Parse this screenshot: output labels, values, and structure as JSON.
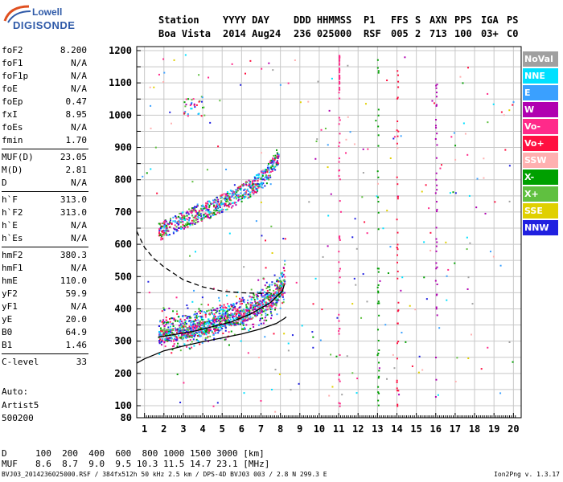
{
  "brand": {
    "line1": "Lowell",
    "line2": "DIGISONDE"
  },
  "header": {
    "row1": [
      "Station",
      "YYYY DAY",
      "DDD HHMMSS",
      "P1",
      "FFS",
      "S",
      "AXN",
      "PPS",
      "IGA",
      "PS"
    ],
    "row2": [
      "Boa Vista",
      "2014 Aug24",
      "236 025000",
      "RSF",
      "005",
      "2",
      "713",
      "100",
      "03+",
      "C0"
    ]
  },
  "params": [
    {
      "k": "foF2",
      "v": "8.200"
    },
    {
      "k": "foF1",
      "v": "N/A"
    },
    {
      "k": "foF1p",
      "v": "N/A"
    },
    {
      "k": "foE",
      "v": "N/A"
    },
    {
      "k": "foEp",
      "v": "0.47"
    },
    {
      "k": "fxI",
      "v": "8.95"
    },
    {
      "k": "foEs",
      "v": "N/A"
    },
    {
      "k": "fmin",
      "v": "1.70"
    },
    {
      "k": "MUF(D)",
      "v": "23.05"
    },
    {
      "k": "M(D)",
      "v": "2.81"
    },
    {
      "k": "D",
      "v": "N/A"
    },
    {
      "k": "h`F",
      "v": "313.0"
    },
    {
      "k": "h`F2",
      "v": "313.0"
    },
    {
      "k": "h`E",
      "v": "N/A"
    },
    {
      "k": "h`Es",
      "v": "N/A"
    },
    {
      "k": "hmF2",
      "v": "380.3"
    },
    {
      "k": "hmF1",
      "v": "N/A"
    },
    {
      "k": "hmE",
      "v": "110.0"
    },
    {
      "k": "yF2",
      "v": "59.9"
    },
    {
      "k": "yF1",
      "v": "N/A"
    },
    {
      "k": "yE",
      "v": "20.0"
    },
    {
      "k": "B0",
      "v": "64.9"
    },
    {
      "k": "B1",
      "v": "1.46"
    },
    {
      "k": "C-level",
      "v": "33"
    }
  ],
  "auto": {
    "l1": "Auto:",
    "l2": "Artist5",
    "l3": "500200"
  },
  "legend": [
    {
      "label": "NoVal",
      "color": "#a0a0a0"
    },
    {
      "label": "NNE",
      "color": "#00e0ff"
    },
    {
      "label": "E",
      "color": "#3aa0ff"
    },
    {
      "label": "W",
      "color": "#b000b0"
    },
    {
      "label": "Vo-",
      "color": "#ff2a8a"
    },
    {
      "label": "Vo+",
      "color": "#ff1040"
    },
    {
      "label": "SSW",
      "color": "#ffb0b0"
    },
    {
      "label": "X-",
      "color": "#00a000"
    },
    {
      "label": "X+",
      "color": "#60c040"
    },
    {
      "label": "SSE",
      "color": "#e0d000"
    },
    {
      "label": "NNW",
      "color": "#2020e0"
    }
  ],
  "footer": {
    "d_label": "D",
    "d_values": "100  200  400  600  800 1000 1500 3000 [km]",
    "muf_label": "MUF",
    "muf_values": "8.6  8.7  9.0  9.5 10.3 11.5 14.7 23.1 [MHz]",
    "file": "BVJ03_2014236025000.RSF / 384fx512h 50 kHz 2.5 km / DPS-4D BVJ03 003 / 2.8 N 299.3 E",
    "version": "Ion2Png v. 1.3.17"
  },
  "chart_data": {
    "type": "scatter",
    "xlim": [
      0.6,
      20.4
    ],
    "ylim": [
      80,
      1200
    ],
    "xticks": [
      1,
      2,
      3,
      4,
      5,
      6,
      7,
      8,
      9,
      10,
      11,
      12,
      13,
      14,
      15,
      16,
      17,
      18,
      19,
      20
    ],
    "yticks": [
      80,
      100,
      200,
      300,
      400,
      500,
      600,
      700,
      800,
      900,
      1000,
      1100,
      1200
    ],
    "grid": true,
    "trace_o": {
      "x": [
        1.7,
        2.5,
        3.5,
        4.5,
        5.5,
        6.5,
        7.2,
        7.8,
        8.1,
        8.2
      ],
      "y": [
        315,
        322,
        335,
        350,
        368,
        392,
        415,
        440,
        470,
        490
      ]
    },
    "trace_2hop": {
      "x": [
        1.7,
        2.5,
        3.5,
        4.5,
        5.5,
        6.5,
        7.2,
        7.8
      ],
      "y": [
        640,
        665,
        690,
        715,
        745,
        780,
        810,
        870
      ]
    },
    "profile_solid": {
      "x": [
        0.6,
        1.0,
        2.0,
        3.0,
        4.0,
        5.0,
        6.0,
        7.0,
        7.8,
        8.2,
        8.3
      ],
      "y": [
        232,
        245,
        270,
        285,
        298,
        310,
        322,
        338,
        355,
        370,
        375
      ]
    },
    "profile_dashed": {
      "x": [
        0.6,
        1.0,
        1.5,
        2.0,
        3.0,
        4.0,
        5.0,
        6.0,
        7.0,
        7.5
      ],
      "y": [
        640,
        590,
        555,
        530,
        490,
        468,
        455,
        450,
        448,
        450
      ]
    },
    "model_curve": {
      "x": [
        1.7,
        2.5,
        3.5,
        4.5,
        5.5,
        6.5,
        7.5,
        8.1,
        8.2
      ],
      "y": [
        312,
        320,
        330,
        345,
        360,
        385,
        420,
        455,
        475
      ]
    }
  }
}
